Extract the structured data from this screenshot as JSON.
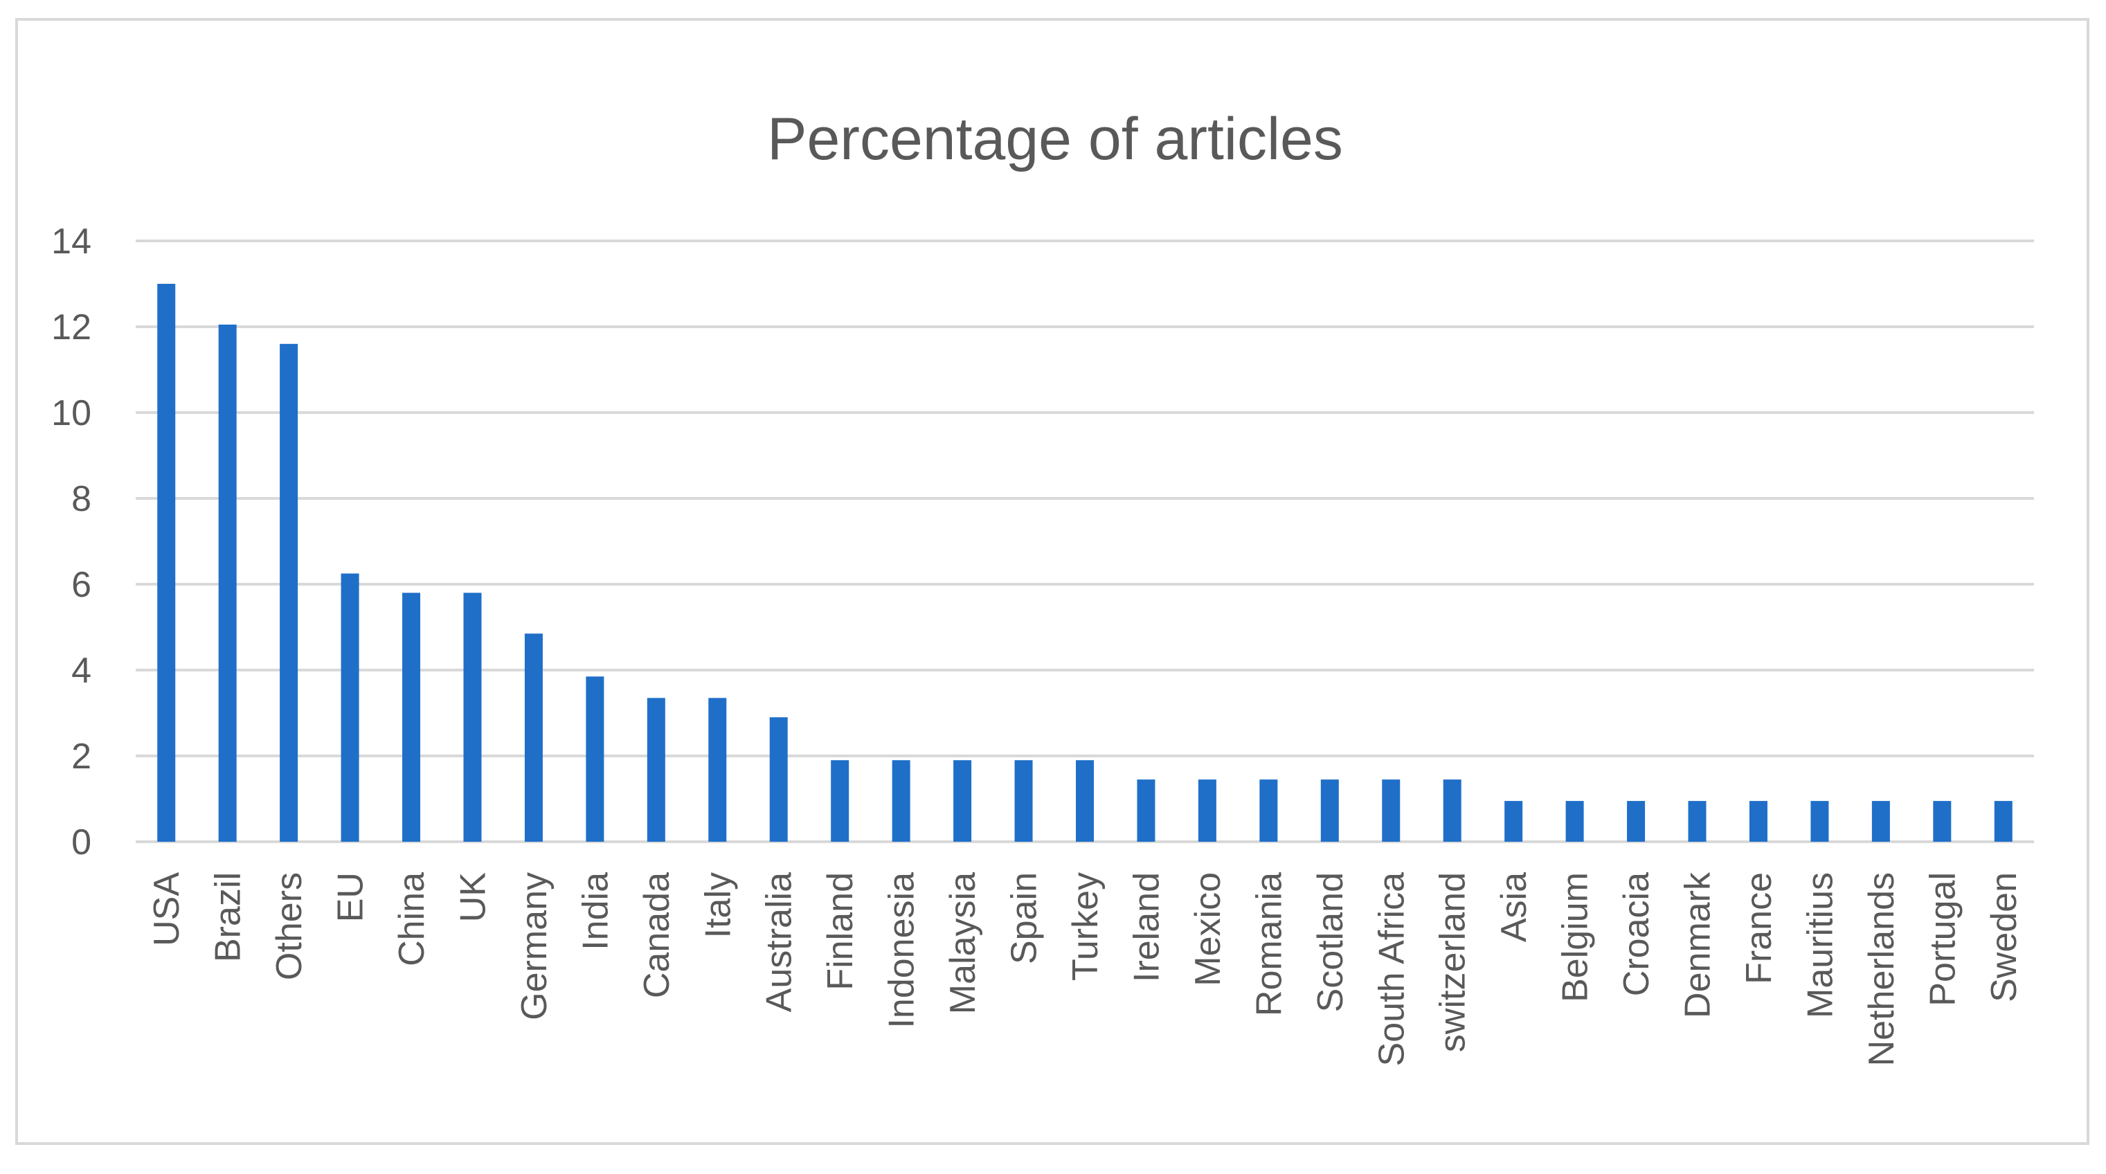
{
  "chart_data": {
    "type": "bar",
    "title": "Percentage of articles",
    "xlabel": "",
    "ylabel": "",
    "ylim": [
      0,
      14
    ],
    "yticks": [
      0,
      2,
      4,
      6,
      8,
      10,
      12,
      14
    ],
    "grid": true,
    "legend": "none",
    "bar_color": "#1f6fc8",
    "categories": [
      "USA",
      "Brazil",
      "Others",
      "EU",
      "China",
      "UK",
      "Germany",
      "India",
      "Canada",
      "Italy",
      "Australia",
      "Finland",
      "Indonesia",
      "Malaysia",
      "Spain",
      "Turkey",
      "Ireland",
      "Mexico",
      "Romania",
      "Scotland",
      "South Africa",
      "switzerland",
      "Asia",
      "Belgium",
      "Croacia",
      "Denmark",
      "France",
      "Mauritius",
      "Netherlands",
      "Portugal",
      "Sweden"
    ],
    "values": [
      13,
      12.05,
      11.6,
      6.25,
      5.8,
      5.8,
      4.85,
      3.85,
      3.35,
      3.35,
      2.9,
      1.9,
      1.9,
      1.9,
      1.9,
      1.9,
      1.45,
      1.45,
      1.45,
      1.45,
      1.45,
      1.45,
      0.95,
      0.95,
      0.95,
      0.95,
      0.95,
      0.95,
      0.95,
      0.95,
      0.95
    ]
  }
}
